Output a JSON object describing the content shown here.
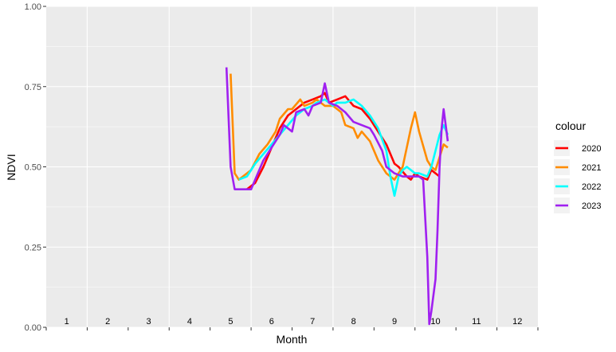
{
  "chart_data": {
    "type": "line",
    "xlabel": "Month",
    "ylabel": "NDVI",
    "xlim": [
      0.5,
      12.5
    ],
    "ylim": [
      0,
      1
    ],
    "y_ticks": [
      "0.00",
      "0.25",
      "0.50",
      "0.75",
      "1.00"
    ],
    "y_tick_values": [
      0,
      0.25,
      0.5,
      0.75,
      1.0
    ],
    "month_labels": [
      "1",
      "2",
      "3",
      "4",
      "5",
      "6",
      "7",
      "8",
      "9",
      "10",
      "11",
      "12"
    ],
    "grid": true,
    "legend": {
      "title": "colour",
      "position": "right"
    },
    "series": [
      {
        "name": "2020",
        "color": "#ff0000",
        "points": [
          [
            5.4,
            0.43
          ],
          [
            5.6,
            0.45
          ],
          [
            5.8,
            0.5
          ],
          [
            6.0,
            0.56
          ],
          [
            6.2,
            0.62
          ],
          [
            6.4,
            0.66
          ],
          [
            6.6,
            0.68
          ],
          [
            6.8,
            0.7
          ],
          [
            7.0,
            0.71
          ],
          [
            7.2,
            0.72
          ],
          [
            7.3,
            0.73
          ],
          [
            7.4,
            0.7
          ],
          [
            7.6,
            0.71
          ],
          [
            7.8,
            0.72
          ],
          [
            8.0,
            0.69
          ],
          [
            8.2,
            0.68
          ],
          [
            8.4,
            0.65
          ],
          [
            8.6,
            0.61
          ],
          [
            8.8,
            0.57
          ],
          [
            9.0,
            0.51
          ],
          [
            9.1,
            0.5
          ],
          [
            9.3,
            0.47
          ],
          [
            9.4,
            0.46
          ],
          [
            9.5,
            0.48
          ],
          [
            9.6,
            0.47
          ],
          [
            9.8,
            0.46
          ],
          [
            9.9,
            0.49
          ],
          [
            10.0,
            0.48
          ],
          [
            10.1,
            0.47
          ]
        ]
      },
      {
        "name": "2021",
        "color": "#ff8c00",
        "points": [
          [
            5.0,
            0.79
          ],
          [
            5.1,
            0.48
          ],
          [
            5.2,
            0.46
          ],
          [
            5.3,
            0.47
          ],
          [
            5.5,
            0.49
          ],
          [
            5.7,
            0.54
          ],
          [
            5.9,
            0.57
          ],
          [
            6.1,
            0.61
          ],
          [
            6.2,
            0.65
          ],
          [
            6.4,
            0.68
          ],
          [
            6.5,
            0.68
          ],
          [
            6.7,
            0.71
          ],
          [
            6.8,
            0.69
          ],
          [
            7.0,
            0.7
          ],
          [
            7.1,
            0.71
          ],
          [
            7.3,
            0.69
          ],
          [
            7.5,
            0.69
          ],
          [
            7.7,
            0.67
          ],
          [
            7.8,
            0.63
          ],
          [
            8.0,
            0.62
          ],
          [
            8.1,
            0.59
          ],
          [
            8.2,
            0.61
          ],
          [
            8.4,
            0.58
          ],
          [
            8.6,
            0.52
          ],
          [
            8.8,
            0.48
          ],
          [
            9.0,
            0.46
          ],
          [
            9.2,
            0.5
          ],
          [
            9.4,
            0.62
          ],
          [
            9.5,
            0.67
          ],
          [
            9.6,
            0.61
          ],
          [
            9.8,
            0.52
          ],
          [
            9.9,
            0.5
          ],
          [
            10.0,
            0.49
          ],
          [
            10.1,
            0.53
          ],
          [
            10.2,
            0.57
          ],
          [
            10.3,
            0.56
          ]
        ]
      },
      {
        "name": "2022",
        "color": "#00ffff",
        "points": [
          [
            5.2,
            0.46
          ],
          [
            5.4,
            0.47
          ],
          [
            5.5,
            0.49
          ],
          [
            5.6,
            0.51
          ],
          [
            5.8,
            0.54
          ],
          [
            6.0,
            0.57
          ],
          [
            6.2,
            0.6
          ],
          [
            6.4,
            0.63
          ],
          [
            6.6,
            0.66
          ],
          [
            6.8,
            0.68
          ],
          [
            7.0,
            0.69
          ],
          [
            7.1,
            0.7
          ],
          [
            7.3,
            0.71
          ],
          [
            7.5,
            0.69
          ],
          [
            7.6,
            0.7
          ],
          [
            7.8,
            0.7
          ],
          [
            8.0,
            0.71
          ],
          [
            8.2,
            0.69
          ],
          [
            8.4,
            0.66
          ],
          [
            8.6,
            0.62
          ],
          [
            8.8,
            0.55
          ],
          [
            8.9,
            0.47
          ],
          [
            9.0,
            0.41
          ],
          [
            9.1,
            0.47
          ],
          [
            9.2,
            0.49
          ],
          [
            9.3,
            0.5
          ],
          [
            9.4,
            0.49
          ],
          [
            9.5,
            0.48
          ],
          [
            9.6,
            0.48
          ],
          [
            9.8,
            0.47
          ],
          [
            9.9,
            0.5
          ],
          [
            10.0,
            0.55
          ],
          [
            10.1,
            0.6
          ],
          [
            10.2,
            0.63
          ],
          [
            10.3,
            0.6
          ]
        ]
      },
      {
        "name": "2023",
        "color": "#a020f0",
        "points": [
          [
            4.9,
            0.81
          ],
          [
            5.0,
            0.5
          ],
          [
            5.1,
            0.43
          ],
          [
            5.3,
            0.43
          ],
          [
            5.5,
            0.43
          ],
          [
            5.6,
            0.46
          ],
          [
            5.8,
            0.52
          ],
          [
            6.0,
            0.56
          ],
          [
            6.2,
            0.6
          ],
          [
            6.3,
            0.63
          ],
          [
            6.5,
            0.61
          ],
          [
            6.6,
            0.67
          ],
          [
            6.8,
            0.68
          ],
          [
            6.9,
            0.66
          ],
          [
            7.0,
            0.69
          ],
          [
            7.2,
            0.7
          ],
          [
            7.3,
            0.76
          ],
          [
            7.4,
            0.7
          ],
          [
            7.6,
            0.69
          ],
          [
            7.8,
            0.67
          ],
          [
            8.0,
            0.64
          ],
          [
            8.2,
            0.63
          ],
          [
            8.4,
            0.62
          ],
          [
            8.5,
            0.6
          ],
          [
            8.7,
            0.55
          ],
          [
            8.8,
            0.5
          ],
          [
            9.0,
            0.48
          ],
          [
            9.2,
            0.47
          ],
          [
            9.4,
            0.47
          ],
          [
            9.6,
            0.47
          ],
          [
            9.7,
            0.46
          ],
          [
            9.8,
            0.22
          ],
          [
            9.85,
            0.01
          ],
          [
            9.9,
            0.05
          ],
          [
            10.0,
            0.15
          ],
          [
            10.05,
            0.3
          ],
          [
            10.1,
            0.5
          ],
          [
            10.15,
            0.62
          ],
          [
            10.2,
            0.68
          ],
          [
            10.25,
            0.63
          ],
          [
            10.3,
            0.58
          ]
        ]
      }
    ]
  }
}
